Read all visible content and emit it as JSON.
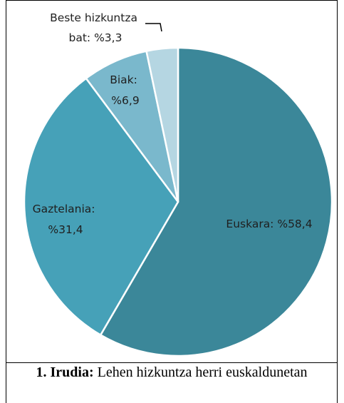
{
  "chart_data": {
    "type": "pie",
    "slices": [
      {
        "label_lines": [
          "Euskara: %58,4"
        ],
        "value": 58.4,
        "color": "#3b8799"
      },
      {
        "label_lines": [
          "Gaztelania:",
          "%31,4"
        ],
        "value": 31.4,
        "color": "#46a1b8"
      },
      {
        "label_lines": [
          "Biak:",
          "%6,9"
        ],
        "value": 6.9,
        "color": "#7ab8cc"
      },
      {
        "label_lines": [
          "Beste hizkuntza",
          "bat: %3,3"
        ],
        "value": 3.3,
        "color": "#b5d6e2"
      }
    ]
  },
  "caption": {
    "number": "1. Irudia:",
    "text": " Lehen hizkuntza herri euskaldunetan"
  }
}
